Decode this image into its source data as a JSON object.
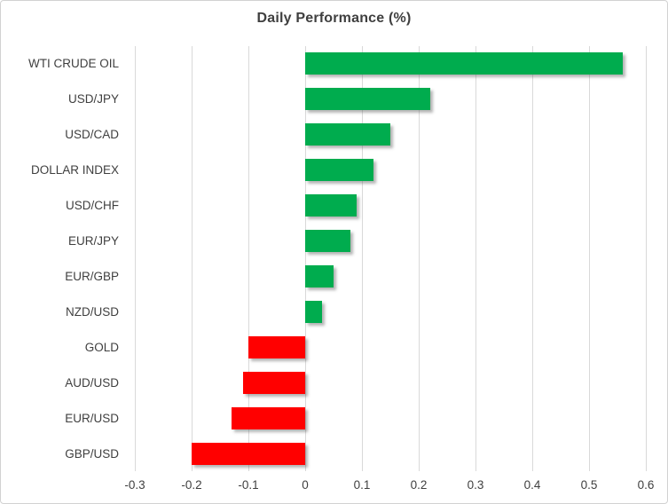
{
  "chart_data": {
    "type": "bar",
    "orientation": "horizontal",
    "title": "Daily Performance (%)",
    "categories": [
      "WTI CRUDE OIL",
      "USD/JPY",
      "USD/CAD",
      "DOLLAR INDEX",
      "USD/CHF",
      "EUR/JPY",
      "EUR/GBP",
      "NZD/USD",
      "GOLD",
      "AUD/USD",
      "EUR/USD",
      "GBP/USD"
    ],
    "values": [
      0.56,
      0.22,
      0.15,
      0.12,
      0.09,
      0.08,
      0.05,
      0.03,
      -0.1,
      -0.11,
      -0.13,
      -0.2
    ],
    "xlim": [
      -0.3,
      0.6
    ],
    "x_ticks": [
      -0.3,
      -0.2,
      -0.1,
      0,
      0.1,
      0.2,
      0.3,
      0.4,
      0.5,
      0.6
    ],
    "x_tick_labels": [
      "-0.3",
      "-0.2",
      "-0.1",
      "0",
      "0.1",
      "0.2",
      "0.3",
      "0.4",
      "0.5",
      "0.6"
    ],
    "grid": true,
    "legend": false,
    "colors": {
      "positive": "#00AC4E",
      "negative": "#FF0000",
      "gridline": "#D9D9D9",
      "text": "#3F3F3F",
      "border": "#D2D2D2",
      "background": "#FFFFFF"
    }
  }
}
